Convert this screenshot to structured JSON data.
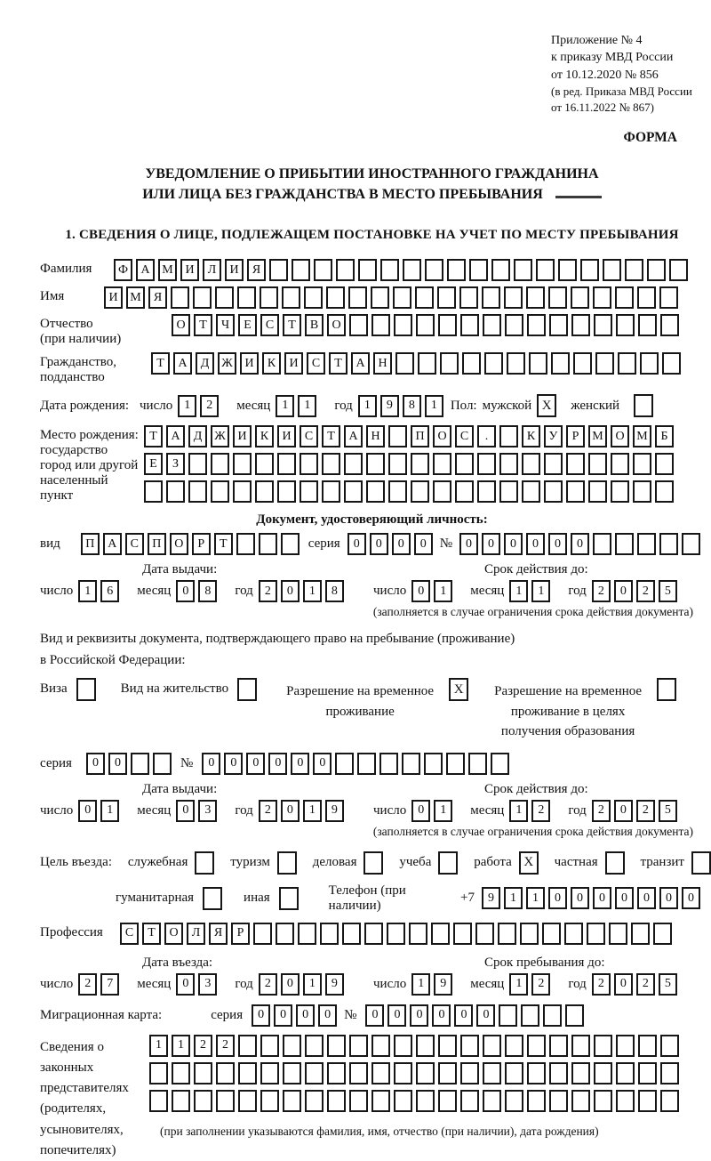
{
  "header": {
    "lines": [
      "Приложение № 4",
      "к приказу МВД России",
      "от 10.12.2020 № 856"
    ],
    "amendment": [
      "(в ред. Приказа МВД России",
      "от 16.11.2022 № 867)"
    ],
    "form_label": "ФОРМА"
  },
  "title": {
    "line1": "УВЕДОМЛЕНИЕ О ПРИБЫТИИ ИНОСТРАННОГО ГРАЖДАНИНА",
    "line2": "ИЛИ ЛИЦА БЕЗ ГРАЖДАНСТВА В МЕСТО ПРЕБЫВАНИЯ"
  },
  "section1_heading": "1. СВЕДЕНИЯ О ЛИЦЕ, ПОДЛЕЖАЩЕМ ПОСТАНОВКЕ НА УЧЕТ ПО МЕСТУ ПРЕБЫВАНИЯ",
  "date_labels": {
    "day": "число",
    "month": "месяц",
    "year": "год"
  },
  "person": {
    "surname_label": "Фамилия",
    "surname": {
      "text": "ФАМИЛИЯ",
      "len": 26
    },
    "name_label": "Имя",
    "name": {
      "text": "ИМЯ",
      "len": 26
    },
    "patronymic_label": "Отчество\n(при наличии)",
    "patronymic": {
      "text": "ОТЧЕСТВО",
      "len": 23
    },
    "citizenship_label": "Гражданство,\nподданство",
    "citizenship": {
      "text": "ТАДЖИКИСТАН",
      "len": 24
    },
    "birth_date_label": "Дата рождения:",
    "birth_day": "12",
    "birth_month": "11",
    "birth_year": "1981",
    "sex_label": "Пол:",
    "male_label": "мужской",
    "male_checked": true,
    "female_label": "женский",
    "female_checked": false,
    "birth_place_label": "Место рождения:\nгосударство\nгород или другой\nнаселенный пункт",
    "birth_place_line1": {
      "text": "ТАДЖИКИСТАН ПОС. КУРМОМБ",
      "len": 24
    },
    "birth_place_line2": {
      "text": "ЕЗ",
      "len": 24
    },
    "birth_place_line3": {
      "text": "",
      "len": 24
    }
  },
  "identity_doc": {
    "heading": "Документ, удостоверяющий личность:",
    "kind_label": "вид",
    "kind": {
      "text": "ПАСПОРТ",
      "len": 10
    },
    "series_label": "серия",
    "series": {
      "text": "0000",
      "len": 4
    },
    "number_label": "№",
    "number": {
      "text": "000000",
      "len": 11
    },
    "issue_title": "Дата выдачи:",
    "issue_day": "16",
    "issue_month": "08",
    "issue_year": "2018",
    "valid_title": "Срок действия до:",
    "valid_day": "01",
    "valid_month": "11",
    "valid_year": "2025",
    "note": "(заполняется в случае ограничения срока действия документа)"
  },
  "residence_doc": {
    "intro1": "Вид и реквизиты документа, подтверждающего право на пребывание (проживание)",
    "intro2": "в Российской Федерации:",
    "options": [
      {
        "label": "Виза",
        "checked": false
      },
      {
        "label": "Вид на жительство",
        "checked": false
      },
      {
        "label": "Разрешение на временное\nпроживание",
        "checked": true
      },
      {
        "label": "Разрешение на временное\nпроживание в целях\nполучения образования",
        "checked": false
      }
    ],
    "series_label": "серия",
    "series": {
      "text": "00",
      "len": 4
    },
    "number_label": "№",
    "number": {
      "text": "000000",
      "len": 14
    },
    "issue_title": "Дата выдачи:",
    "issue_day": "01",
    "issue_month": "03",
    "issue_year": "2019",
    "valid_title": "Срок действия до:",
    "valid_day": "01",
    "valid_month": "12",
    "valid_year": "2025",
    "note": "(заполняется в случае ограничения срока действия документа)"
  },
  "visit": {
    "purpose_label": "Цель въезда:",
    "purposes": [
      {
        "label": "служебная",
        "checked": false
      },
      {
        "label": "туризм",
        "checked": false
      },
      {
        "label": "деловая",
        "checked": false
      },
      {
        "label": "учеба",
        "checked": false
      },
      {
        "label": "работа",
        "checked": true
      },
      {
        "label": "частная",
        "checked": false
      },
      {
        "label": "транзит",
        "checked": false
      }
    ],
    "purposes_extra": [
      {
        "label": "гуманитарная",
        "checked": false
      },
      {
        "label": "иная",
        "checked": false
      }
    ],
    "phone_label": "Телефон (при наличии)",
    "phone_prefix": "+7",
    "phone": {
      "text": "9110000000",
      "len": 10
    },
    "profession_label": "Профессия",
    "profession": {
      "text": "СТОЛЯР",
      "len": 25
    },
    "entry_title": "Дата въезда:",
    "entry_day": "27",
    "entry_month": "03",
    "entry_year": "2019",
    "stay_title": "Срок пребывания до:",
    "stay_day": "19",
    "stay_month": "12",
    "stay_year": "2025"
  },
  "migration_card": {
    "label": "Миграционная карта:",
    "series_label": "серия",
    "series": {
      "text": "0000",
      "len": 4
    },
    "number_label": "№",
    "number": {
      "text": "000000",
      "len": 10
    }
  },
  "representatives": {
    "label": "Сведения о\nзаконных\nпредставителях\n(родителях,\nусыновителях,\nпопечителях)",
    "line1": {
      "text": "1122",
      "len": 24
    },
    "line2": {
      "text": "",
      "len": 24
    },
    "line3": {
      "text": "",
      "len": 24
    },
    "note": "(при заполнении указываются фамилия, имя, отчество (при наличии), дата рождения)"
  }
}
